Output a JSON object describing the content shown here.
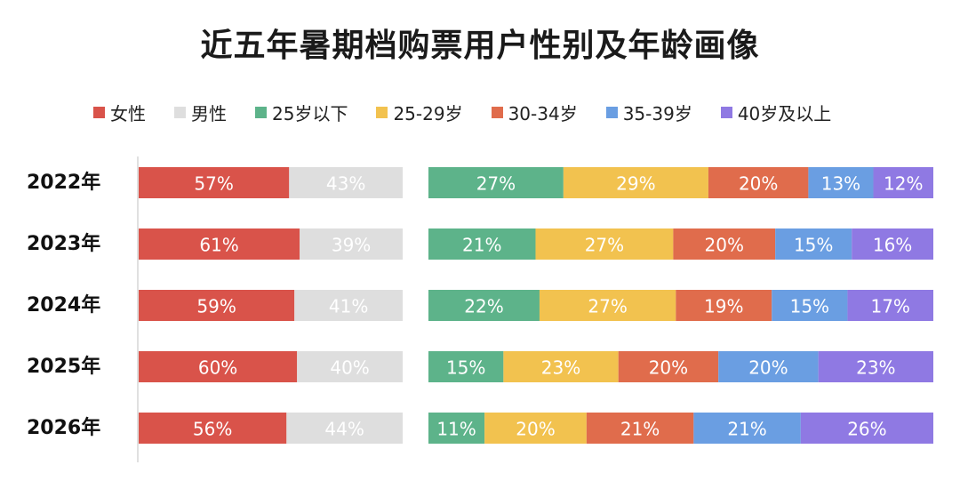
{
  "title": "近五年暑期档购票用户性别及年龄画像",
  "legend": [
    {
      "label": "女性",
      "color": "#d9534a"
    },
    {
      "label": "男性",
      "color": "#dedede"
    },
    {
      "label": "25岁以下",
      "color": "#5db38a"
    },
    {
      "label": "25-29岁",
      "color": "#f2c24f"
    },
    {
      "label": "30-34岁",
      "color": "#e06c4c"
    },
    {
      "label": "35-39岁",
      "color": "#6a9ee2"
    },
    {
      "label": "40岁及以上",
      "color": "#8f79e3"
    }
  ],
  "chart_data": [
    {
      "type": "bar",
      "stacked": true,
      "orientation": "horizontal",
      "normalized": true,
      "categories": [
        "2022年",
        "2023年",
        "2024年",
        "2025年",
        "2026年"
      ],
      "series": [
        {
          "name": "女性",
          "color": "#d9534a",
          "values": [
            57,
            61,
            59,
            60,
            56
          ],
          "labels": [
            "57%",
            "61%",
            "59%",
            "60%",
            "56%"
          ]
        },
        {
          "name": "男性",
          "color": "#dedede",
          "values": [
            43,
            39,
            41,
            40,
            44
          ],
          "labels": [
            "43%",
            "39%",
            "41%",
            "40%",
            "44%"
          ]
        }
      ]
    },
    {
      "type": "bar",
      "stacked": true,
      "orientation": "horizontal",
      "normalized": true,
      "categories": [
        "2022年",
        "2023年",
        "2024年",
        "2025年",
        "2026年"
      ],
      "series": [
        {
          "name": "25岁以下",
          "color": "#5db38a",
          "values": [
            27,
            21,
            22,
            15,
            11
          ],
          "labels": [
            "27%",
            "21%",
            "22%",
            "15%",
            "11%"
          ]
        },
        {
          "name": "25-29岁",
          "color": "#f2c24f",
          "values": [
            29,
            27,
            27,
            23,
            20
          ],
          "labels": [
            "29%",
            "27%",
            "27%",
            "23%",
            "20%"
          ]
        },
        {
          "name": "30-34岁",
          "color": "#e06c4c",
          "values": [
            20,
            20,
            19,
            20,
            21
          ],
          "labels": [
            "20%",
            "20%",
            "19%",
            "20%",
            "21%"
          ]
        },
        {
          "name": "35-39岁",
          "color": "#6a9ee2",
          "values": [
            13,
            15,
            15,
            20,
            21
          ],
          "labels": [
            "13%",
            "15%",
            "15%",
            "20%",
            "21%"
          ]
        },
        {
          "name": "40岁及以上",
          "color": "#8f79e3",
          "values": [
            12,
            16,
            17,
            23,
            26
          ],
          "labels": [
            "12%",
            "16%",
            "17%",
            "23%",
            "26%"
          ]
        }
      ]
    }
  ]
}
